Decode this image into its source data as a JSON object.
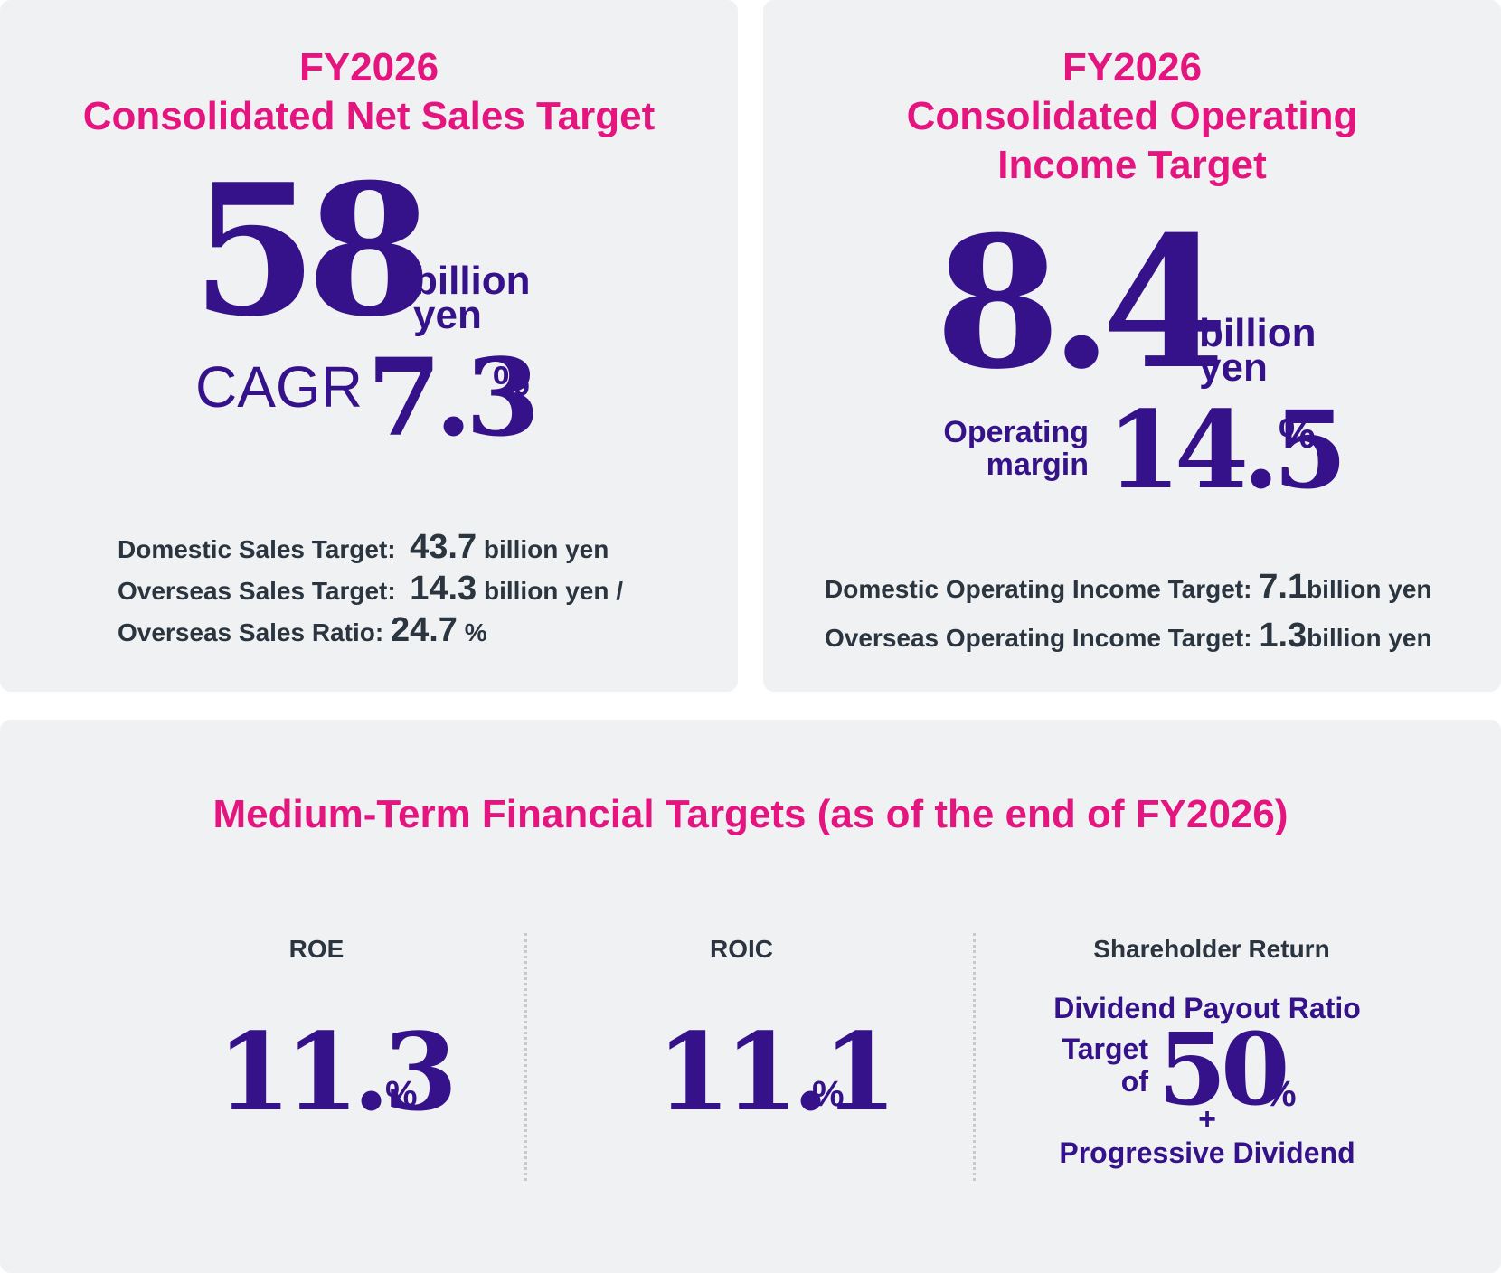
{
  "sales": {
    "title_line1": "FY2026",
    "title_line2": "Consolidated Net Sales Target",
    "value": "58",
    "unit_line1": "billion",
    "unit_line2": "yen",
    "cagr_label": "CAGR",
    "cagr_value": "7.3",
    "cagr_unit": "%",
    "domestic_label": "Domestic Sales Target:",
    "domestic_value": "43.7",
    "domestic_unit": "billion yen",
    "overseas_label": "Overseas Sales Target:",
    "overseas_value": "14.3",
    "overseas_unit": "billion yen /",
    "ratio_label": "Overseas Sales Ratio:",
    "ratio_value": "24.7",
    "ratio_unit": "%"
  },
  "income": {
    "title_line1": "FY2026",
    "title_line2": "Consolidated Operating",
    "title_line3": "Income Target",
    "value": "8.4",
    "unit_line1": "billion",
    "unit_line2": "yen",
    "margin_label_line1": "Operating",
    "margin_label_line2": "margin",
    "margin_value": "14.5",
    "margin_unit": "%",
    "domestic_label": "Domestic Operating Income Target:",
    "domestic_value": "7.1",
    "domestic_unit": "billion yen",
    "overseas_label": "Overseas Operating Income Target:",
    "overseas_value": "1.3",
    "overseas_unit": "billion yen"
  },
  "medium": {
    "title": "Medium-Term Financial Targets (as of the end of FY2026)",
    "roe_label": "ROE",
    "roe_value": "11.3",
    "roe_unit": "%",
    "roic_label": "ROIC",
    "roic_value": "11.1",
    "roic_unit": "%",
    "sr_label": "Shareholder Return",
    "sr_dividend_label": "Dividend Payout Ratio",
    "sr_target_line1": "Target",
    "sr_target_line2": "of",
    "sr_value": "50",
    "sr_unit": "%",
    "sr_plus": "+",
    "sr_progressive": "Progressive Dividend"
  }
}
